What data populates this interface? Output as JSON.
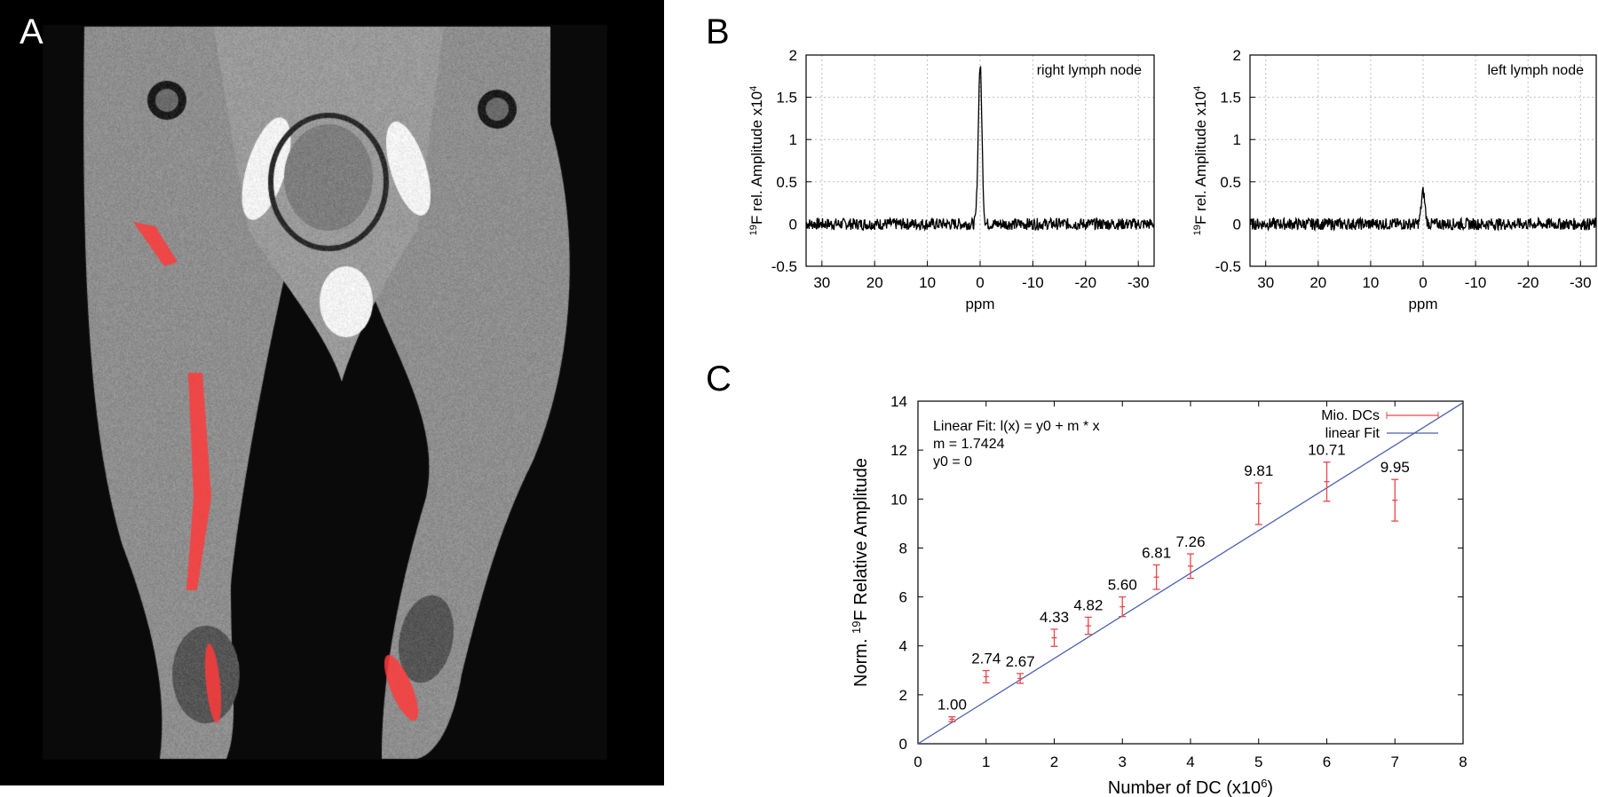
{
  "panels": {
    "a_label": "A",
    "b_label": "B",
    "c_label": "C"
  },
  "colors": {
    "signal": "#000000",
    "grid": "#bdbdbd",
    "fit_line": "#4a5fae",
    "data_points": "#e8474c",
    "overlay": "#ff3b3b"
  },
  "chart_data": [
    {
      "type": "line",
      "annotation": "right lymph node",
      "xlabel": "ppm",
      "ylabel": "¹⁹F rel. Amplitude x10⁴",
      "xlim": [
        33,
        -33
      ],
      "ylim": [
        -0.5,
        2
      ],
      "x_ticks": [
        30,
        20,
        10,
        0,
        -10,
        -20,
        -30
      ],
      "y_ticks": [
        -0.5,
        0,
        0.5,
        1,
        1.5,
        2
      ],
      "grid": true,
      "series": [
        {
          "peak_ppm": 0,
          "peak_amplitude": 1.87,
          "baseline": 0,
          "noise_amplitude": 0.07
        }
      ]
    },
    {
      "type": "line",
      "annotation": "left lymph node",
      "xlabel": "ppm",
      "ylabel": "¹⁹F rel. Amplitude x10⁴",
      "xlim": [
        33,
        -33
      ],
      "ylim": [
        -0.5,
        2
      ],
      "x_ticks": [
        30,
        20,
        10,
        0,
        -10,
        -20,
        -30
      ],
      "y_ticks": [
        -0.5,
        0,
        0.5,
        1,
        1.5,
        2
      ],
      "grid": true,
      "series": [
        {
          "peak_ppm": 0,
          "peak_amplitude": 0.38,
          "baseline": 0,
          "noise_amplitude": 0.07
        }
      ]
    },
    {
      "type": "scatter",
      "xlabel": "Number of DC (x10⁶)",
      "ylabel": "Norm. ¹⁹F Relative Amplitude",
      "xlim": [
        0,
        8
      ],
      "ylim": [
        0,
        14
      ],
      "x_ticks": [
        0,
        1,
        2,
        3,
        4,
        5,
        6,
        7,
        8
      ],
      "y_ticks": [
        0,
        2,
        4,
        6,
        8,
        10,
        12,
        14
      ],
      "grid": false,
      "legend_position": "top-right",
      "annotation_lines": [
        "Linear Fit: l(x) = y0 + m * x",
        "m = 1.7424",
        "y0 =   0"
      ],
      "series": [
        {
          "name": "Mio. DCs",
          "x": [
            0.5,
            1,
            1.5,
            2,
            2.5,
            3,
            3.5,
            4,
            5,
            6,
            7
          ],
          "y": [
            1.0,
            2.74,
            2.67,
            4.33,
            4.82,
            5.6,
            6.81,
            7.26,
            9.81,
            10.71,
            9.95
          ],
          "err": [
            0.1,
            0.25,
            0.2,
            0.35,
            0.35,
            0.4,
            0.5,
            0.5,
            0.85,
            0.8,
            0.85
          ],
          "labels": [
            "1.00",
            "2.74",
            "2.67",
            "4.33",
            "4.82",
            "5.60",
            "6.81",
            "7.26",
            "9.81",
            "10.71",
            "9.95"
          ]
        },
        {
          "name": "linear Fit",
          "slope": 1.7424,
          "intercept": 0
        }
      ]
    }
  ]
}
